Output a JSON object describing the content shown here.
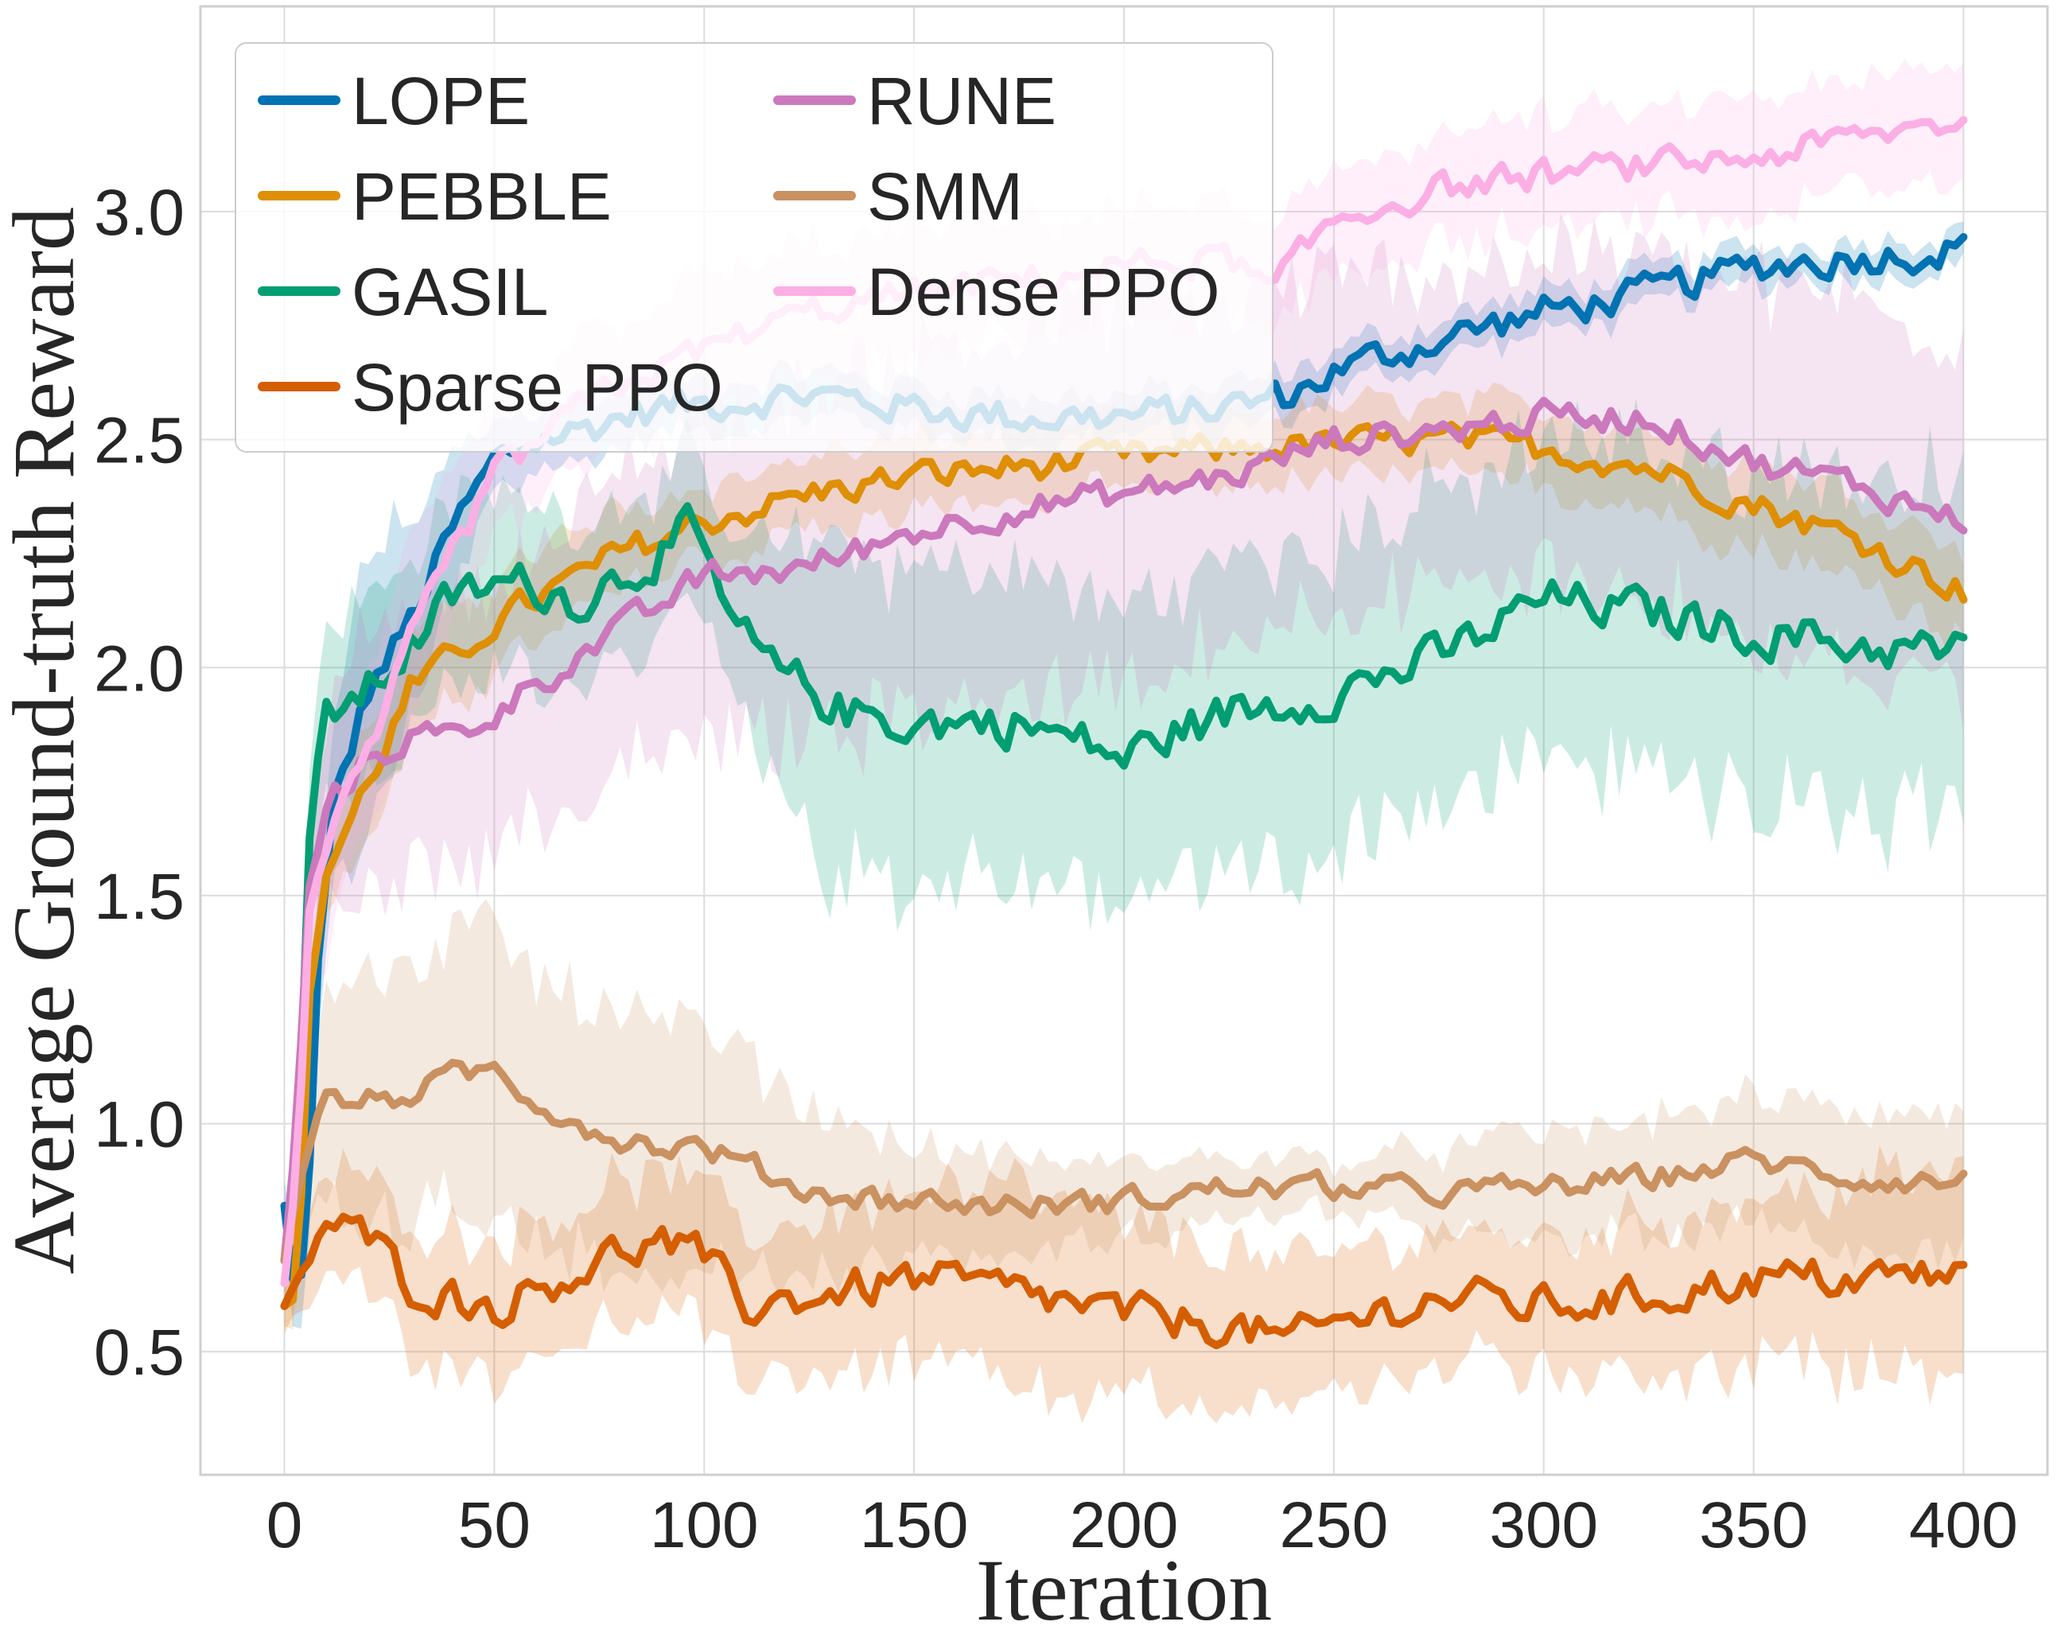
{
  "chart_data": {
    "type": "line",
    "title": "",
    "xlabel": "Iteration",
    "ylabel": "Average Ground-truth Reward",
    "xlim": [
      -20,
      420
    ],
    "ylim": [
      0.23,
      3.45
    ],
    "xticks": [
      0,
      50,
      100,
      150,
      200,
      250,
      300,
      350,
      400
    ],
    "yticks": [
      0.5,
      1.0,
      1.5,
      2.0,
      2.5,
      3.0
    ],
    "xtick_labels": [
      "0",
      "50",
      "100",
      "150",
      "200",
      "250",
      "300",
      "350",
      "400"
    ],
    "ytick_labels": [
      "0.5",
      "1.0",
      "1.5",
      "2.0",
      "2.5",
      "3.0"
    ],
    "grid": true,
    "legend_position": "top-left",
    "legend_columns": 2,
    "series": [
      {
        "name": "LOPE",
        "color": "#0173b2",
        "noise": 0.035,
        "band": [
          [
            0,
            0.06
          ],
          [
            20,
            0.3
          ],
          [
            50,
            0.08
          ],
          [
            100,
            0.05
          ],
          [
            400,
            0.04
          ]
        ],
        "x": [
          0,
          3,
          5,
          8,
          12,
          20,
          30,
          40,
          50,
          60,
          70,
          80,
          90,
          100,
          125,
          150,
          175,
          200,
          215,
          230,
          240,
          250,
          275,
          300,
          325,
          350,
          375,
          400
        ],
        "y": [
          0.82,
          0.58,
          0.72,
          1.35,
          1.7,
          1.95,
          2.1,
          2.3,
          2.45,
          2.5,
          2.52,
          2.55,
          2.57,
          2.58,
          2.6,
          2.57,
          2.55,
          2.55,
          2.56,
          2.58,
          2.6,
          2.65,
          2.72,
          2.78,
          2.82,
          2.88,
          2.9,
          2.92
        ]
      },
      {
        "name": "PEBBLE",
        "color": "#de8f05",
        "noise": 0.03,
        "band": [
          [
            0,
            0.05
          ],
          [
            20,
            0.12
          ],
          [
            100,
            0.08
          ],
          [
            250,
            0.08
          ],
          [
            400,
            0.1
          ]
        ],
        "x": [
          0,
          3,
          6,
          10,
          15,
          20,
          30,
          40,
          50,
          60,
          80,
          100,
          125,
          150,
          175,
          200,
          225,
          250,
          275,
          300,
          325,
          350,
          375,
          400
        ],
        "y": [
          0.6,
          0.62,
          1.3,
          1.55,
          1.65,
          1.75,
          1.95,
          2.02,
          2.1,
          2.15,
          2.25,
          2.32,
          2.38,
          2.42,
          2.44,
          2.46,
          2.48,
          2.49,
          2.5,
          2.48,
          2.44,
          2.36,
          2.28,
          2.17
        ]
      },
      {
        "name": "GASIL",
        "color": "#029e73",
        "noise": 0.045,
        "band": [
          [
            0,
            0.08
          ],
          [
            10,
            0.2
          ],
          [
            50,
            0.2
          ],
          [
            100,
            0.15
          ],
          [
            130,
            0.35
          ],
          [
            200,
            0.32
          ],
          [
            300,
            0.35
          ],
          [
            400,
            0.38
          ]
        ],
        "x": [
          0,
          3,
          6,
          10,
          20,
          30,
          40,
          50,
          60,
          70,
          80,
          90,
          97,
          105,
          115,
          125,
          135,
          150,
          175,
          195,
          200,
          210,
          225,
          250,
          275,
          300,
          325,
          350,
          375,
          400
        ],
        "y": [
          0.7,
          0.9,
          1.6,
          1.9,
          1.95,
          2.05,
          2.15,
          2.18,
          2.18,
          2.15,
          2.2,
          2.26,
          2.3,
          2.12,
          2.0,
          1.95,
          1.9,
          1.88,
          1.88,
          1.82,
          1.8,
          1.85,
          1.9,
          1.95,
          2.02,
          2.15,
          2.12,
          2.08,
          2.05,
          2.03
        ]
      },
      {
        "name": "Sparse PPO",
        "color": "#d55e00",
        "noise": 0.04,
        "band": [
          [
            0,
            0.05
          ],
          [
            10,
            0.12
          ],
          [
            40,
            0.15
          ],
          [
            100,
            0.15
          ],
          [
            175,
            0.22
          ],
          [
            250,
            0.15
          ],
          [
            300,
            0.15
          ],
          [
            400,
            0.22
          ]
        ],
        "x": [
          0,
          5,
          10,
          20,
          30,
          40,
          50,
          60,
          70,
          80,
          90,
          100,
          110,
          125,
          150,
          175,
          200,
          225,
          240,
          250,
          275,
          300,
          325,
          350,
          375,
          400
        ],
        "y": [
          0.6,
          0.7,
          0.78,
          0.75,
          0.65,
          0.62,
          0.6,
          0.64,
          0.68,
          0.72,
          0.74,
          0.7,
          0.6,
          0.62,
          0.66,
          0.63,
          0.58,
          0.56,
          0.52,
          0.56,
          0.62,
          0.6,
          0.62,
          0.66,
          0.66,
          0.67
        ]
      },
      {
        "name": "RUNE",
        "color": "#cc78bc",
        "noise": 0.03,
        "band": [
          [
            0,
            0.08
          ],
          [
            20,
            0.3
          ],
          [
            60,
            0.3
          ],
          [
            100,
            0.35
          ],
          [
            150,
            0.4
          ],
          [
            200,
            0.4
          ],
          [
            250,
            0.35
          ],
          [
            300,
            0.35
          ],
          [
            400,
            0.42
          ]
        ],
        "x": [
          0,
          3,
          6,
          10,
          20,
          30,
          40,
          50,
          60,
          80,
          100,
          125,
          150,
          175,
          200,
          225,
          250,
          275,
          300,
          325,
          350,
          375,
          400
        ],
        "y": [
          0.7,
          1.0,
          1.5,
          1.7,
          1.8,
          1.85,
          1.85,
          1.9,
          1.97,
          2.08,
          2.2,
          2.22,
          2.3,
          2.35,
          2.38,
          2.42,
          2.5,
          2.52,
          2.55,
          2.55,
          2.45,
          2.4,
          2.32
        ]
      },
      {
        "name": "SMM",
        "color": "#ca9161",
        "noise": 0.025,
        "band": [
          [
            0,
            0.1
          ],
          [
            10,
            0.25
          ],
          [
            50,
            0.3
          ],
          [
            100,
            0.25
          ],
          [
            150,
            0.12
          ],
          [
            200,
            0.08
          ],
          [
            250,
            0.06
          ],
          [
            300,
            0.12
          ],
          [
            400,
            0.15
          ]
        ],
        "x": [
          0,
          5,
          10,
          25,
          40,
          50,
          60,
          75,
          90,
          100,
          125,
          150,
          175,
          200,
          225,
          250,
          275,
          300,
          325,
          350,
          375,
          400
        ],
        "y": [
          0.7,
          0.95,
          1.05,
          1.05,
          1.1,
          1.12,
          1.05,
          0.98,
          0.95,
          0.95,
          0.85,
          0.83,
          0.82,
          0.83,
          0.86,
          0.86,
          0.85,
          0.86,
          0.88,
          0.92,
          0.88,
          0.87
        ]
      },
      {
        "name": "Dense PPO",
        "color": "#fbafe4",
        "noise": 0.03,
        "band": [
          [
            0,
            0.08
          ],
          [
            10,
            0.22
          ],
          [
            50,
            0.15
          ],
          [
            100,
            0.15
          ],
          [
            200,
            0.12
          ],
          [
            300,
            0.12
          ],
          [
            400,
            0.12
          ]
        ],
        "x": [
          0,
          3,
          6,
          10,
          20,
          30,
          40,
          50,
          75,
          100,
          125,
          150,
          175,
          200,
          225,
          235,
          240,
          250,
          275,
          300,
          325,
          350,
          375,
          400
        ],
        "y": [
          0.65,
          0.9,
          1.5,
          1.6,
          1.8,
          2.05,
          2.25,
          2.42,
          2.6,
          2.7,
          2.78,
          2.82,
          2.85,
          2.88,
          2.9,
          2.82,
          2.88,
          2.98,
          3.05,
          3.08,
          3.1,
          3.12,
          3.16,
          3.2
        ]
      }
    ]
  }
}
